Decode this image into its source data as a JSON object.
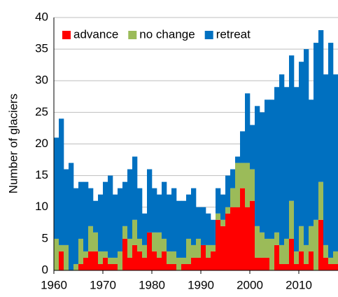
{
  "chart_data": {
    "type": "stacked_bar",
    "y_label": "Number of glaciers",
    "x": [
      1960,
      1961,
      1962,
      1963,
      1964,
      1965,
      1966,
      1967,
      1968,
      1969,
      1970,
      1971,
      1972,
      1973,
      1974,
      1975,
      1976,
      1977,
      1978,
      1979,
      1980,
      1981,
      1982,
      1983,
      1984,
      1985,
      1986,
      1987,
      1988,
      1989,
      1990,
      1991,
      1992,
      1993,
      1994,
      1995,
      1996,
      1997,
      1998,
      1999,
      2000,
      2001,
      2002,
      2003,
      2004,
      2005,
      2006,
      2007,
      2008,
      2009,
      2010,
      2011,
      2012,
      2013,
      2014,
      2015,
      2016,
      2017
    ],
    "series": [
      {
        "name": "advance",
        "color": "#ff0000",
        "values": [
          0,
          3,
          0,
          0,
          0,
          1,
          2,
          3,
          3,
          1,
          2,
          1,
          1,
          0,
          5,
          2,
          4,
          3,
          2,
          6,
          3,
          2,
          3,
          1,
          1,
          0,
          1,
          1,
          2,
          2,
          4,
          2,
          3,
          8,
          7,
          9,
          10,
          10,
          13,
          10,
          11,
          2,
          2,
          2,
          0,
          4,
          1,
          1,
          5,
          1,
          3,
          1,
          3,
          0,
          8,
          2,
          1,
          1
        ]
      },
      {
        "name": "no change",
        "color": "#9bbb59",
        "values": [
          5,
          1,
          4,
          0,
          1,
          4,
          1,
          4,
          3,
          2,
          1,
          1,
          1,
          3,
          2,
          3,
          4,
          2,
          2,
          0,
          3,
          4,
          2,
          2,
          2,
          2,
          1,
          4,
          2,
          3,
          0,
          2,
          1,
          1,
          1,
          1,
          3,
          7,
          4,
          7,
          5,
          5,
          4,
          3,
          5,
          2,
          3,
          4,
          6,
          2,
          4,
          3,
          4,
          8,
          6,
          2,
          1,
          2
        ]
      },
      {
        "name": "retreat",
        "color": "#0070c0",
        "values": [
          16,
          20,
          12,
          17,
          12,
          9,
          11,
          6,
          5,
          9,
          11,
          13,
          10,
          10,
          7,
          11,
          10,
          8,
          5,
          10,
          7,
          6,
          9,
          9,
          10,
          9,
          9,
          7,
          9,
          5,
          6,
          5,
          4,
          4,
          4,
          5,
          3,
          1,
          5,
          11,
          7,
          19,
          19,
          22,
          22,
          23,
          27,
          24,
          23,
          26,
          26,
          31,
          20,
          28,
          24,
          27,
          34,
          28
        ]
      }
    ],
    "xlim": [
      1960,
      2018
    ],
    "xticks": [
      1960,
      1970,
      1980,
      1990,
      2000,
      2010
    ],
    "ylim": [
      0,
      40
    ],
    "yticks": [
      0,
      5,
      10,
      15,
      20,
      25,
      30,
      35,
      40
    ],
    "grid": true,
    "legend": "top-left"
  }
}
